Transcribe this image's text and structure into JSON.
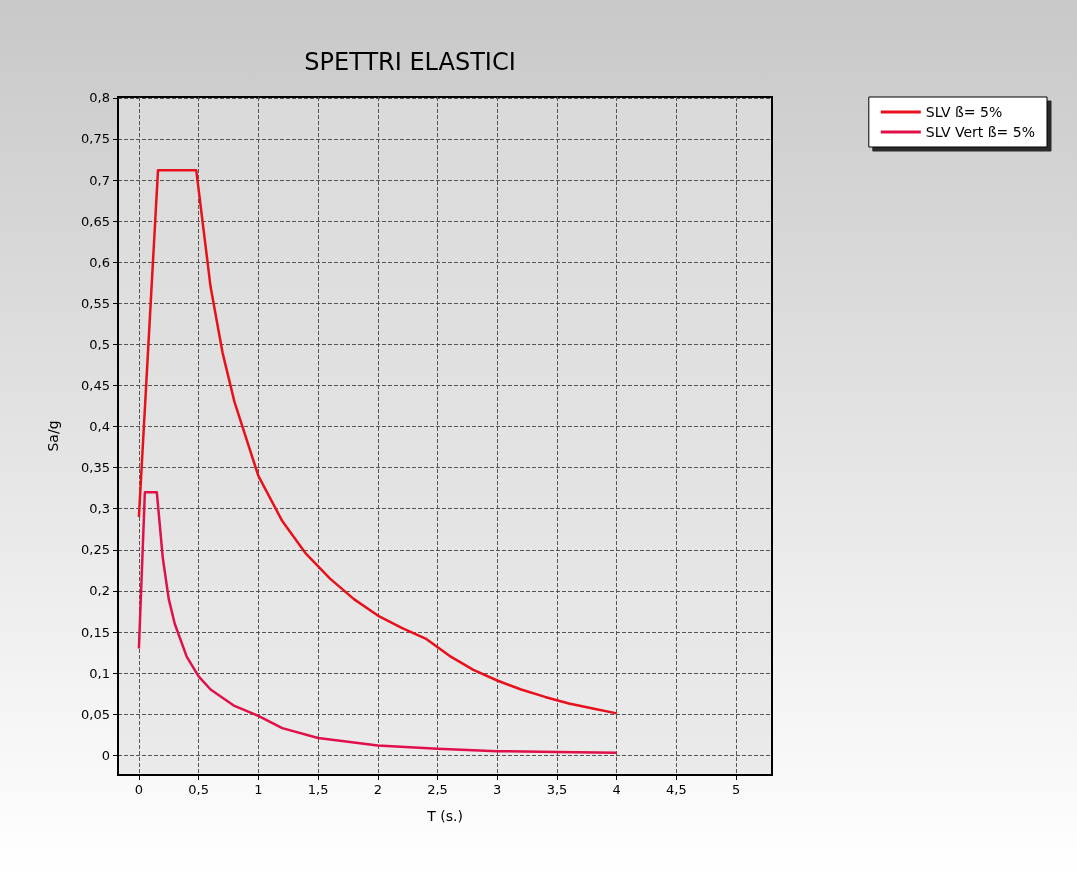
{
  "chart_data": {
    "type": "line",
    "title": "SPETTRI ELASTICI",
    "xlabel": "T (s.)",
    "ylabel": "Sa/g",
    "xlim": [
      -0.175,
      5.3
    ],
    "xticks": [
      0,
      {
        "value": 0.5,
        "label": "0,5"
      },
      1,
      {
        "value": 1.5,
        "label": "1,5"
      },
      2,
      {
        "value": 2.5,
        "label": "2,5"
      },
      3,
      {
        "value": 3.5,
        "label": "3,5"
      },
      4,
      {
        "value": 4.5,
        "label": "4,5"
      },
      5
    ],
    "ylim": [
      -0.024,
      0.801
    ],
    "yticks": [
      0,
      {
        "value": 0.05,
        "label": "0,05"
      },
      {
        "value": 0.1,
        "label": "0,1"
      },
      {
        "value": 0.15,
        "label": "0,15"
      },
      {
        "value": 0.2,
        "label": "0,2"
      },
      {
        "value": 0.25,
        "label": "0,25"
      },
      {
        "value": 0.3,
        "label": "0,3"
      },
      {
        "value": 0.35,
        "label": "0,35"
      },
      {
        "value": 0.4,
        "label": "0,4"
      },
      {
        "value": 0.45,
        "label": "0,45"
      },
      {
        "value": 0.5,
        "label": "0,5"
      },
      {
        "value": 0.55,
        "label": "0,55"
      },
      {
        "value": 0.6,
        "label": "0,6"
      },
      {
        "value": 0.65,
        "label": "0,65"
      },
      {
        "value": 0.7,
        "label": "0,7"
      },
      {
        "value": 0.75,
        "label": "0,75"
      },
      {
        "value": 0.8,
        "label": "0,8"
      }
    ],
    "grid": true,
    "legend": "top right",
    "marker": "none",
    "line_style": "solid",
    "series": [
      {
        "name": "SLV ß= 5%",
        "color": "#e8101a",
        "x": [
          0,
          0.16,
          0.48,
          0.6,
          0.7,
          0.8,
          1,
          1.2,
          1.4,
          1.6,
          1.8,
          2,
          2.2,
          2.4,
          2.6,
          2.8,
          3,
          3.2,
          3.4,
          3.6,
          3.8,
          4
        ],
        "values": [
          0.29,
          0.712,
          0.712,
          0.57,
          0.49,
          0.43,
          0.34,
          0.285,
          0.245,
          0.215,
          0.19,
          0.17,
          0.155,
          0.142,
          0.121,
          0.104,
          0.091,
          0.08,
          0.071,
          0.063,
          0.057,
          0.051
        ]
      },
      {
        "name": "SLV Vert ß= 5%",
        "color": "#e0104a",
        "x": [
          0,
          0.05,
          0.15,
          0.2,
          0.25,
          0.3,
          0.4,
          0.5,
          0.6,
          0.8,
          1,
          1.2,
          1.5,
          2,
          2.5,
          3,
          3.5,
          4
        ],
        "values": [
          0.13,
          0.32,
          0.32,
          0.24,
          0.19,
          0.16,
          0.12,
          0.096,
          0.08,
          0.06,
          0.048,
          0.033,
          0.021,
          0.012,
          0.008,
          0.005,
          0.004,
          0.003
        ]
      }
    ]
  }
}
